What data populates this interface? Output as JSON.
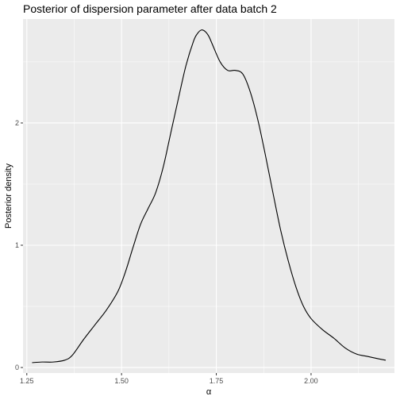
{
  "chart_data": {
    "type": "line",
    "title": "Posterior of dispersion parameter after data batch 2",
    "xlabel": "α",
    "ylabel": "Posterior density",
    "xlim": [
      1.24,
      2.22
    ],
    "ylim": [
      -0.045,
      2.85
    ],
    "x_ticks": [
      1.25,
      1.5,
      1.75,
      2.0
    ],
    "x_tick_labels": [
      "1.25",
      "1.50",
      "1.75",
      "2.00"
    ],
    "y_ticks": [
      0,
      1,
      2
    ],
    "y_tick_labels": [
      "0",
      "1",
      "2"
    ],
    "grid": true,
    "colors": {
      "panel": "#ebebeb",
      "grid_major": "#ffffff",
      "line": "#000000",
      "tick_text": "#4d4d4d"
    },
    "series": [
      {
        "x": [
          1.264,
          1.29,
          1.32,
          1.35,
          1.37,
          1.4,
          1.43,
          1.46,
          1.49,
          1.51,
          1.53,
          1.55,
          1.57,
          1.59,
          1.61,
          1.63,
          1.65,
          1.67,
          1.69,
          1.7,
          1.71,
          1.72,
          1.73,
          1.74,
          1.76,
          1.78,
          1.8,
          1.82,
          1.84,
          1.86,
          1.88,
          1.9,
          1.92,
          1.94,
          1.96,
          1.98,
          2.0,
          2.03,
          2.06,
          2.09,
          2.12,
          2.15,
          2.18,
          2.197
        ],
        "y": [
          0.04,
          0.045,
          0.045,
          0.06,
          0.1,
          0.23,
          0.35,
          0.47,
          0.62,
          0.78,
          0.98,
          1.17,
          1.3,
          1.43,
          1.64,
          1.92,
          2.2,
          2.47,
          2.67,
          2.73,
          2.76,
          2.75,
          2.71,
          2.64,
          2.5,
          2.43,
          2.43,
          2.4,
          2.25,
          2.02,
          1.73,
          1.42,
          1.12,
          0.87,
          0.66,
          0.5,
          0.4,
          0.31,
          0.24,
          0.16,
          0.11,
          0.09,
          0.07,
          0.06
        ]
      }
    ]
  }
}
